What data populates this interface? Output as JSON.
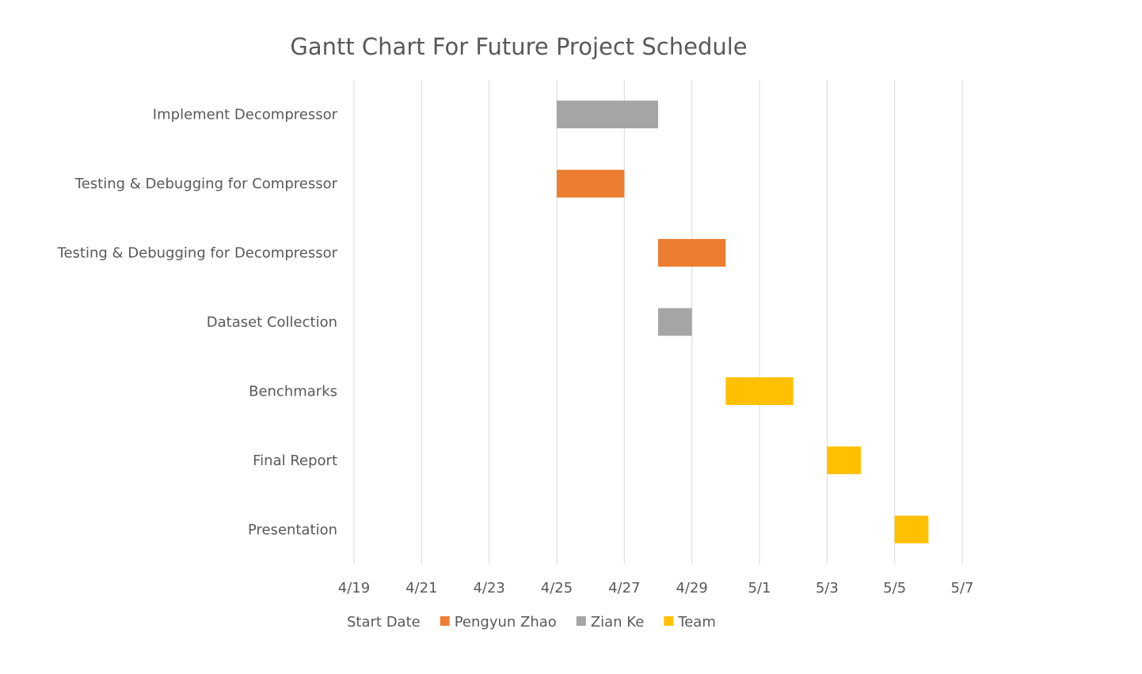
{
  "chart_data": {
    "type": "bar",
    "orientation": "horizontal",
    "stacked": true,
    "title": "Gantt Chart For Future Project Schedule",
    "xlabel": "",
    "ylabel": "",
    "xlim": [
      "4/19",
      "5/7"
    ],
    "x_ticks": [
      "4/19",
      "4/21",
      "4/23",
      "4/25",
      "4/27",
      "4/29",
      "5/1",
      "5/3",
      "5/5",
      "5/7"
    ],
    "grid": true,
    "legend_position": "bottom",
    "categories": [
      "Implement Decompressor",
      "Testing & Debugging for Compressor",
      "Testing & Debugging for Decompressor",
      "Dataset Collection",
      "Benchmarks",
      "Final Report",
      "Presentation"
    ],
    "series": [
      {
        "name": "Start Date",
        "color": "transparent",
        "values": [
          "4/25",
          "4/25",
          "4/28",
          "4/28",
          "4/30",
          "5/3",
          "5/5"
        ]
      },
      {
        "name": "Pengyun Zhao",
        "color": "#ED7D31",
        "durations_days": [
          0,
          2,
          2,
          0,
          0,
          0,
          0
        ]
      },
      {
        "name": "Zian Ke",
        "color": "#A5A5A5",
        "durations_days": [
          3,
          0,
          0,
          1,
          0,
          0,
          0
        ]
      },
      {
        "name": "Team",
        "color": "#FFC000",
        "durations_days": [
          0,
          0,
          0,
          0,
          2,
          1,
          1
        ]
      }
    ]
  }
}
